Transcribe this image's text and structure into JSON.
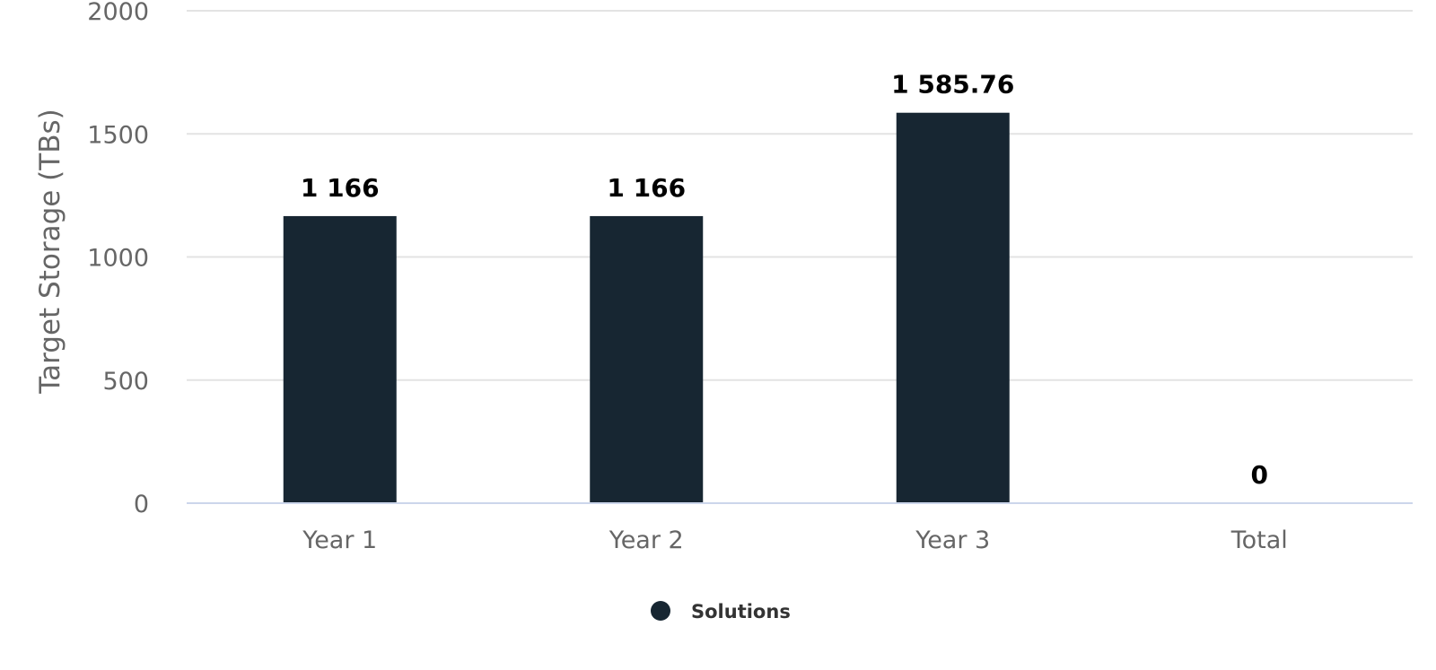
{
  "chart_data": {
    "type": "bar",
    "categories": [
      "Year 1",
      "Year 2",
      "Year 3",
      "Total"
    ],
    "series": [
      {
        "name": "Solutions",
        "values": [
          1166,
          1166,
          1585.76,
          0
        ],
        "labels": [
          "1 166",
          "1 166",
          "1 585.76",
          "0"
        ],
        "color": "#172632"
      }
    ],
    "xlabel": "",
    "ylabel": "Target Storage (TBs)",
    "ylim": [
      0,
      2000
    ],
    "yticks": [
      0,
      500,
      1000,
      1500,
      2000
    ],
    "ytick_labels": [
      "0",
      "500",
      "1000",
      "1500",
      "2000"
    ],
    "grid": true,
    "legend_position": "bottom-center"
  },
  "colors": {
    "grid": "#e3e3e3",
    "axis": "#ccd6eb",
    "tick_text": "#666666",
    "data_label_text": "#000000",
    "legend_text": "#333333"
  }
}
